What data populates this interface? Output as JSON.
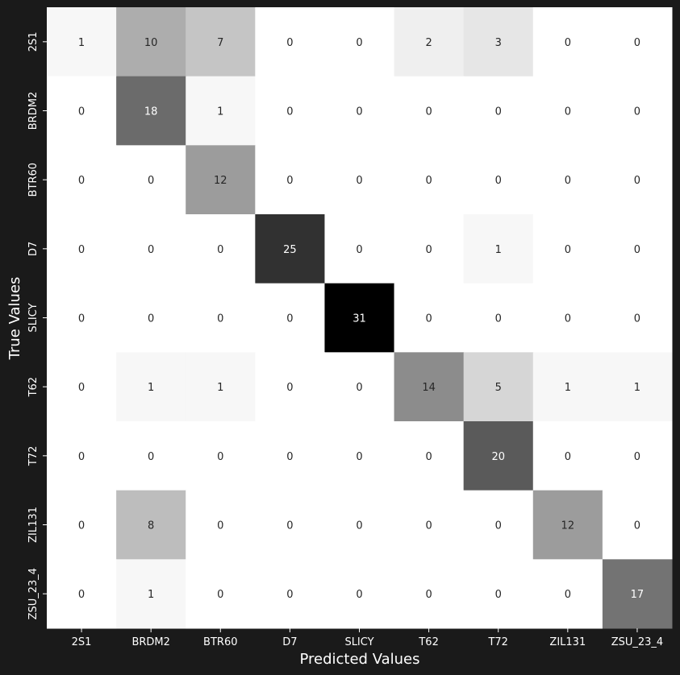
{
  "chart_data": {
    "type": "heatmap",
    "xlabel": "Predicted Values",
    "ylabel": "True Values",
    "x_categories": [
      "2S1",
      "BRDM2",
      "BTR60",
      "D7",
      "SLICY",
      "T62",
      "T72",
      "ZIL131",
      "ZSU_23_4"
    ],
    "y_categories": [
      "2S1",
      "BRDM2",
      "BTR60",
      "D7",
      "SLICY",
      "T62",
      "T72",
      "ZIL131",
      "ZSU_23_4"
    ],
    "matrix": [
      [
        1,
        10,
        7,
        0,
        0,
        2,
        3,
        0,
        0
      ],
      [
        0,
        18,
        1,
        0,
        0,
        0,
        0,
        0,
        0
      ],
      [
        0,
        0,
        12,
        0,
        0,
        0,
        0,
        0,
        0
      ],
      [
        0,
        0,
        0,
        25,
        0,
        0,
        1,
        0,
        0
      ],
      [
        0,
        0,
        0,
        0,
        31,
        0,
        0,
        0,
        0
      ],
      [
        0,
        1,
        1,
        0,
        0,
        14,
        5,
        1,
        1
      ],
      [
        0,
        0,
        0,
        0,
        0,
        0,
        20,
        0,
        0
      ],
      [
        0,
        8,
        0,
        0,
        0,
        0,
        0,
        12,
        0
      ],
      [
        0,
        1,
        0,
        0,
        0,
        0,
        0,
        0,
        17
      ]
    ],
    "value_range": [
      0,
      31
    ],
    "colormap": "Greys",
    "colorbar": false,
    "background": "#1a1a1a"
  }
}
